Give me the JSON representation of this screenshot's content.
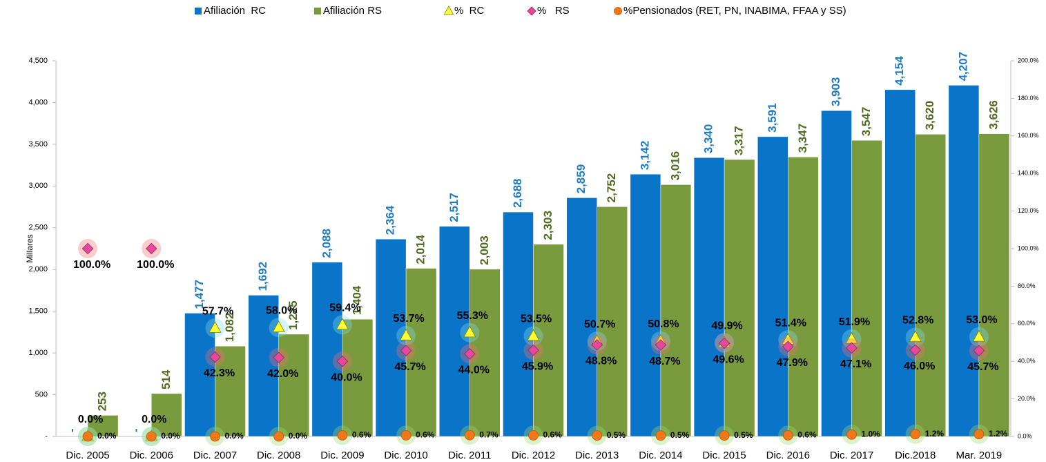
{
  "chart_data": {
    "type": "bar",
    "categories": [
      "Dic. 2005",
      "Dic. 2006",
      "Dic. 2007",
      "Dic. 2008",
      "Dic. 2009",
      "Dic. 2010",
      "Dic. 2011",
      "Dic. 2012",
      "Dic. 2013",
      "Dic. 2014",
      "Dic. 2015",
      "Dic. 2016",
      "Dic. 2017",
      "Dic.2018",
      "Mar. 2019"
    ],
    "y_label": "Millares",
    "ylim": [
      0,
      4500
    ],
    "yticks": [
      {
        "value": 0,
        "label": "-"
      },
      500,
      {
        "value": 1000,
        "label": "1,000"
      },
      {
        "value": 1500,
        "label": "1,500"
      },
      {
        "value": 2000,
        "label": "2,000"
      },
      {
        "value": 2500,
        "label": "2,500"
      },
      {
        "value": 3000,
        "label": "3,000"
      },
      {
        "value": 3500,
        "label": "3,500"
      },
      {
        "value": 4000,
        "label": "4,000"
      },
      {
        "value": 4500,
        "label": "4,500"
      }
    ],
    "y2lim": [
      0,
      200
    ],
    "y2ticks": [
      {
        "value": 0,
        "label": "0.0%"
      },
      {
        "value": 20,
        "label": "20.0%"
      },
      {
        "value": 40,
        "label": "40.0%"
      },
      {
        "value": 60,
        "label": "60.0%"
      },
      {
        "value": 80,
        "label": "80.0%"
      },
      {
        "value": 100,
        "label": "100.0%"
      },
      {
        "value": 120,
        "label": "120.0%"
      },
      {
        "value": 140,
        "label": "140.0%"
      },
      {
        "value": 160,
        "label": "160.0%"
      },
      {
        "value": 180,
        "label": "180.0%"
      },
      {
        "value": 200,
        "label": "200.0%"
      }
    ],
    "legend": "top",
    "series": [
      {
        "name": "Afiliación  RC",
        "type": "bar",
        "color": "#0a74c8",
        "label_color": "#1f7cc4",
        "values": [
          0,
          0,
          1477,
          1692,
          2088,
          2364,
          2517,
          2688,
          2859,
          3142,
          3340,
          3591,
          3903,
          4154,
          4207
        ],
        "value_labels": [
          "-",
          "-",
          "1,477",
          "1,692",
          "2,088",
          "2,364",
          "2,517",
          "2,688",
          "2,859",
          "3,142",
          "3,340",
          "3,591",
          "3,903",
          "4,154",
          "4,207"
        ]
      },
      {
        "name": "Afiliación RS",
        "type": "bar",
        "color": "#7a9a3e",
        "label_color": "#4f6b22",
        "values": [
          253,
          514,
          1082,
          1225,
          1404,
          2014,
          2003,
          2303,
          2752,
          3016,
          3317,
          3347,
          3547,
          3620,
          3626
        ],
        "value_labels": [
          "253",
          "514",
          "1,082",
          "1,225",
          "1,404",
          "2,014",
          "2,003",
          "2,303",
          "2,752",
          "3,016",
          "3,317",
          "3,347",
          "3,547",
          "3,620",
          "3,626"
        ]
      },
      {
        "name": "%  RC",
        "type": "scatter",
        "marker": "triangle",
        "axis": "y2",
        "color": "#ffff33",
        "values": [
          0,
          0,
          57.7,
          58.0,
          59.4,
          53.7,
          55.3,
          53.5,
          50.7,
          50.8,
          49.9,
          51.4,
          51.9,
          52.8,
          53.0
        ],
        "value_labels": [
          "0.0%",
          "0.0%",
          "57.7%",
          "58.0%",
          "59.4%",
          "53.7%",
          "55.3%",
          "53.5%",
          "50.7%",
          "50.8%",
          "49.9%",
          "51.4%",
          "51.9%",
          "52.8%",
          "53.0%"
        ]
      },
      {
        "name": "%   RS",
        "type": "scatter",
        "marker": "diamond",
        "axis": "y2",
        "color": "#e8489c",
        "values": [
          100.0,
          100.0,
          42.3,
          42.0,
          40.0,
          45.7,
          44.0,
          45.9,
          48.8,
          48.7,
          49.6,
          47.9,
          47.1,
          46.0,
          45.7
        ],
        "value_labels": [
          "100.0%",
          "100.0%",
          "42.3%",
          "42.0%",
          "40.0%",
          "45.7%",
          "44.0%",
          "45.9%",
          "48.8%",
          "48.7%",
          "49.6%",
          "47.9%",
          "47.1%",
          "46.0%",
          "45.7%"
        ]
      },
      {
        "name": "%Pensionados (RET, PN, INABIMA, FFAA y SS)",
        "type": "scatter",
        "marker": "circle",
        "axis": "y2",
        "color": "#f07818",
        "values": [
          0.0,
          0.0,
          0.0,
          0.0,
          0.6,
          0.6,
          0.7,
          0.6,
          0.5,
          0.5,
          0.5,
          0.6,
          1.0,
          1.2,
          1.2
        ],
        "value_labels": [
          "0.0%",
          "0.0%",
          "0.0%",
          "0.0%",
          "0.6%",
          "0.6%",
          "0.7%",
          "0.6%",
          "0.5%",
          "0.5%",
          "0.5%",
          "0.6%",
          "1.0%",
          "1.2%",
          "1.2%"
        ]
      }
    ]
  }
}
